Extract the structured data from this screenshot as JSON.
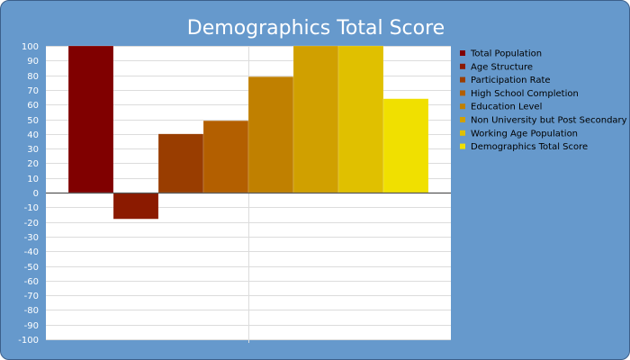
{
  "chart_data": {
    "type": "bar",
    "title": "Demographics Total Score",
    "xlabel": "",
    "ylabel": "",
    "ylim": [
      -100,
      100
    ],
    "ytick_step": 10,
    "grid": true,
    "legend_position": "right",
    "categories": [
      "Total Population",
      "Age Structure",
      "Participation Rate",
      "High School Completion",
      "Education Level",
      "Non University but Post Secondary",
      "Working Age Population",
      "Demographics Total Score"
    ],
    "values": [
      100,
      -18,
      40,
      49,
      79,
      100,
      100,
      64
    ],
    "colors": [
      "#800000",
      "#8b1a00",
      "#993d00",
      "#b35f00",
      "#c08000",
      "#d0a000",
      "#e0c000",
      "#f0e000"
    ]
  }
}
